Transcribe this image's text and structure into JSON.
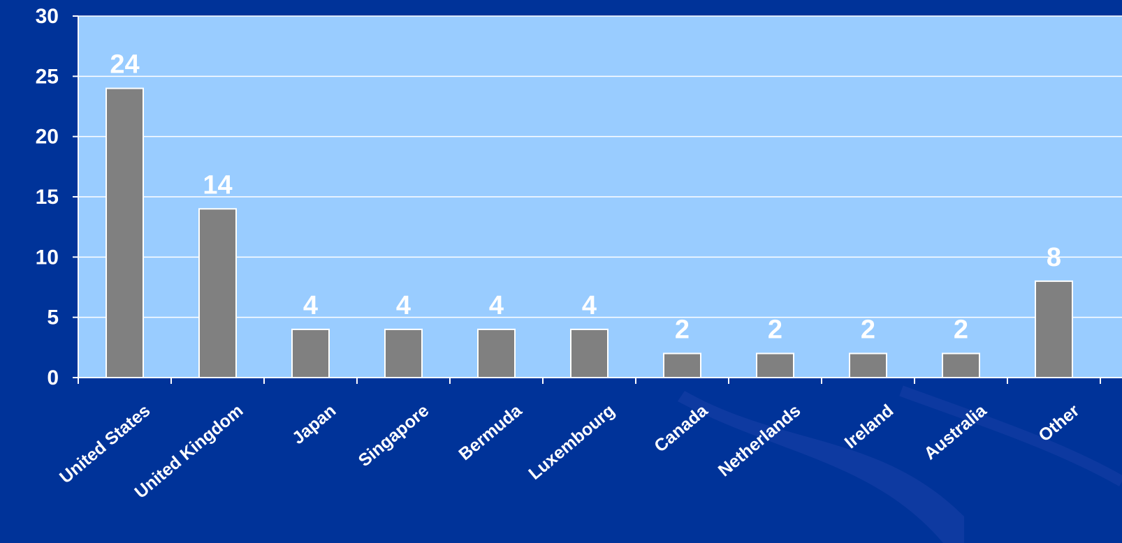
{
  "colors": {
    "page_background": "#003399",
    "background_swirl": "#1a3fa8",
    "plot_area": "#99ccff",
    "gridline": "#ffffff",
    "bar_fill": "#808080",
    "bar_stroke": "#ffffff",
    "text": "#ffffff"
  },
  "chart_data": {
    "type": "bar",
    "title": "",
    "xlabel": "",
    "ylabel": "",
    "categories": [
      "United States",
      "United Kingdom",
      "Japan",
      "Singapore",
      "Bermuda",
      "Luxembourg",
      "Canada",
      "Netherlands",
      "Ireland",
      "Australia",
      "Other"
    ],
    "values": [
      24,
      14,
      4,
      4,
      4,
      4,
      2,
      2,
      2,
      2,
      8
    ],
    "data_labels": [
      "24",
      "14",
      "4",
      "4",
      "4",
      "4",
      "2",
      "2",
      "2",
      "2",
      "8"
    ],
    "ylim": [
      0,
      30
    ],
    "y_ticks": [
      0,
      5,
      10,
      15,
      20,
      25,
      30
    ],
    "y_tick_labels": [
      "0",
      "5",
      "10",
      "15",
      "20",
      "25",
      "30"
    ],
    "grid": true,
    "legend": "none",
    "category_label_rotation": "diagonal"
  }
}
